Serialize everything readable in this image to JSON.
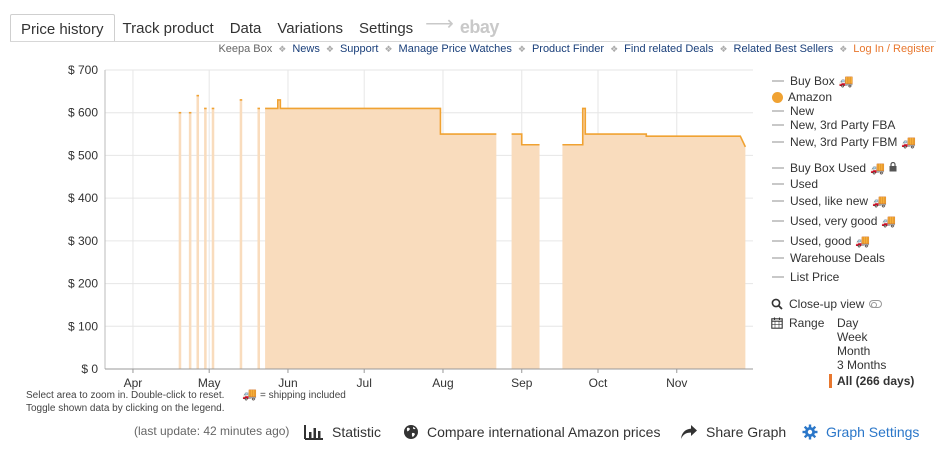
{
  "tabs": {
    "items": [
      {
        "label": "Price history",
        "active": true
      },
      {
        "label": "Track product"
      },
      {
        "label": "Data"
      },
      {
        "label": "Variations"
      },
      {
        "label": "Settings"
      }
    ],
    "arrow": "⟶",
    "ebay": "ebay"
  },
  "links": {
    "keepa_box": "Keepa Box",
    "news": "News",
    "support": "Support",
    "manage": "Manage Price Watches",
    "finder": "Product Finder",
    "deals": "Find related Deals",
    "best": "Related Best Sellers",
    "login": "Log In / Register",
    "separator": "❖"
  },
  "colors": {
    "amazon_line": "#f0a232",
    "amazon_fill": "#f9dcbd",
    "grid": "#e6e6e6",
    "accent_orange": "#e8772e",
    "link_blue": "#1a3f7a",
    "tool_blue": "#2b77c9"
  },
  "chart_data": {
    "type": "area",
    "y_ticks": [
      "$ 700",
      "$ 600",
      "$ 500",
      "$ 400",
      "$ 300",
      "$ 200",
      "$ 100",
      "$ 0"
    ],
    "y_values": [
      700,
      600,
      500,
      400,
      300,
      200,
      100,
      0
    ],
    "ylim": [
      0,
      700
    ],
    "x_ticks": [
      "Apr",
      "May",
      "Jun",
      "Jul",
      "Aug",
      "Sep",
      "Oct",
      "Nov"
    ],
    "x_range": [
      "2023-03-21",
      "2023-12-01"
    ],
    "x_tick_dates": [
      "2023-04-01",
      "2023-05-01",
      "2023-06-01",
      "2023-07-01",
      "2023-08-01",
      "2023-09-01",
      "2023-10-01",
      "2023-11-01"
    ],
    "grid": true,
    "series": [
      {
        "name": "Amazon",
        "color": "#f0a232",
        "segments": [
          {
            "points": [
              [
                "2023-04-19",
                600
              ],
              [
                "2023-04-20",
                600
              ]
            ]
          },
          {
            "points": [
              [
                "2023-04-23",
                600
              ],
              [
                "2023-04-24",
                600
              ]
            ]
          },
          {
            "points": [
              [
                "2023-04-26",
                640
              ],
              [
                "2023-04-27",
                640
              ]
            ]
          },
          {
            "points": [
              [
                "2023-04-29",
                610
              ],
              [
                "2023-04-30",
                610
              ]
            ]
          },
          {
            "points": [
              [
                "2023-05-02",
                610
              ],
              [
                "2023-05-03",
                610
              ]
            ]
          },
          {
            "points": [
              [
                "2023-05-13",
                630
              ],
              [
                "2023-05-14",
                630
              ]
            ]
          },
          {
            "points": [
              [
                "2023-05-20",
                610
              ],
              [
                "2023-05-21",
                610
              ]
            ]
          },
          {
            "points": [
              [
                "2023-05-23",
                610
              ],
              [
                "2023-05-28",
                610
              ],
              [
                "2023-05-28",
                630
              ],
              [
                "2023-05-29",
                630
              ],
              [
                "2023-05-29",
                610
              ],
              [
                "2023-07-31",
                610
              ],
              [
                "2023-07-31",
                550
              ],
              [
                "2023-08-22",
                550
              ]
            ]
          },
          {
            "points": [
              [
                "2023-08-28",
                550
              ],
              [
                "2023-09-01",
                550
              ],
              [
                "2023-09-01",
                525
              ],
              [
                "2023-09-08",
                525
              ]
            ]
          },
          {
            "points": [
              [
                "2023-09-17",
                525
              ],
              [
                "2023-09-25",
                525
              ],
              [
                "2023-09-25",
                610
              ],
              [
                "2023-09-26",
                610
              ],
              [
                "2023-09-26",
                550
              ],
              [
                "2023-10-20",
                550
              ],
              [
                "2023-10-20",
                545
              ],
              [
                "2023-11-26",
                545
              ],
              [
                "2023-11-28",
                520
              ]
            ]
          }
        ]
      }
    ]
  },
  "legend": [
    {
      "label": "Buy Box",
      "mark": "dash",
      "truck": true
    },
    {
      "label": "Amazon",
      "mark": "dot"
    },
    {
      "label": "New",
      "mark": "dash"
    },
    {
      "label": "New, 3rd Party FBA",
      "mark": "dash"
    },
    {
      "label": "New, 3rd Party FBM",
      "mark": "dash",
      "truck": true
    },
    {
      "label": "Buy Box Used",
      "mark": "dash",
      "truck": true,
      "lock": true
    },
    {
      "label": "Used",
      "mark": "dash"
    },
    {
      "label": "Used, like new",
      "mark": "dash",
      "truck": true
    },
    {
      "label": "Used, very good",
      "mark": "dash",
      "truck": true
    },
    {
      "label": "Used, good",
      "mark": "dash",
      "truck": true
    },
    {
      "label": "Warehouse Deals",
      "mark": "dash"
    },
    {
      "label": "List Price",
      "mark": "dash"
    }
  ],
  "closeup": {
    "label": "Close-up view"
  },
  "range": {
    "label": "Range",
    "options": [
      "Day",
      "Week",
      "Month",
      "3 Months"
    ],
    "selected": "All (266 days)"
  },
  "hint": {
    "line1": "Select area to zoom in. Double-click to reset.",
    "shipping": "= shipping included",
    "line2": "Toggle shown data by clicking on the legend."
  },
  "toolbar": {
    "last_update": "(last update: 42 minutes ago)",
    "statistic": "Statistic",
    "compare": "Compare international Amazon prices",
    "share": "Share Graph",
    "settings": "Graph Settings"
  },
  "icons": {
    "truck": "truck-icon",
    "lock": "lock-icon",
    "search": "search-icon",
    "calendar": "calendar-icon",
    "bar_chart": "bar-chart-icon",
    "globe": "globe-icon",
    "share": "share-arrow-icon",
    "gear": "gear-icon"
  }
}
